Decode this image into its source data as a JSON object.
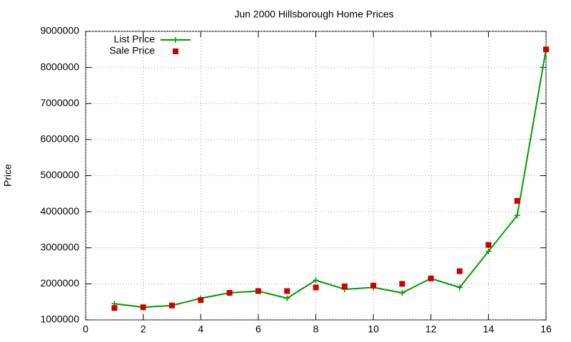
{
  "chart_data": {
    "type": "line",
    "title": "Jun 2000 Hillsborough Home Prices",
    "y_label": "Price",
    "x": [
      1,
      2,
      3,
      4,
      5,
      6,
      7,
      8,
      9,
      10,
      11,
      12,
      13,
      14,
      15,
      16
    ],
    "series": [
      {
        "name": "List Price",
        "color": "#009900",
        "line": true,
        "marker": "plus",
        "values": [
          1450000,
          1350000,
          1400000,
          1600000,
          1750000,
          1800000,
          1600000,
          2100000,
          1850000,
          1900000,
          1750000,
          2150000,
          1900000,
          2900000,
          3900000,
          8500000
        ]
      },
      {
        "name": "Sale Price",
        "color": "#cc0000",
        "line": false,
        "marker": "square",
        "values": [
          1330000,
          1350000,
          1400000,
          1550000,
          1750000,
          1800000,
          1800000,
          1900000,
          1930000,
          1950000,
          2000000,
          2150000,
          2350000,
          3080000,
          4300000,
          8500000
        ]
      }
    ],
    "xlim": [
      0,
      16
    ],
    "xticks": [
      0,
      2,
      4,
      6,
      8,
      10,
      12,
      14,
      16
    ],
    "ylim": [
      1000000,
      9000000
    ],
    "yticks": [
      1000000,
      2000000,
      3000000,
      4000000,
      5000000,
      6000000,
      7000000,
      8000000,
      9000000
    ],
    "grid": true,
    "legend": "top-left"
  }
}
